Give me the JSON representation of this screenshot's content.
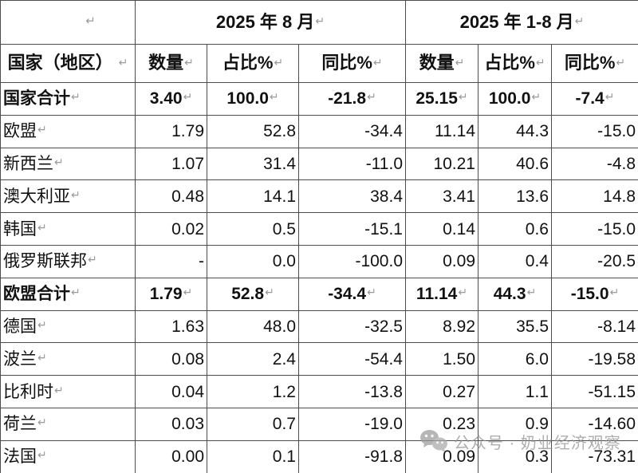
{
  "table": {
    "return_mark": "↵",
    "corner_mark": "↵",
    "period_headers": [
      "2025 年 8 月",
      "2025 年 1-8 月"
    ],
    "col_headers": [
      "国家（地区）",
      "数量",
      "占比%",
      "同比%",
      "数量",
      "占比%",
      "同比%"
    ],
    "rows": [
      {
        "name": "国家合计",
        "bold": true,
        "values": [
          "3.40",
          "100.0",
          "-21.8",
          "25.15",
          "100.0",
          "-7.4"
        ]
      },
      {
        "name": "欧盟",
        "bold": false,
        "values": [
          "1.79",
          "52.8",
          "-34.4",
          "11.14",
          "44.3",
          "-15.0"
        ]
      },
      {
        "name": "新西兰",
        "bold": false,
        "values": [
          "1.07",
          "31.4",
          "-11.0",
          "10.21",
          "40.6",
          "-4.8"
        ]
      },
      {
        "name": "澳大利亚",
        "bold": false,
        "values": [
          "0.48",
          "14.1",
          "38.4",
          "3.41",
          "13.6",
          "14.8"
        ]
      },
      {
        "name": "韩国",
        "bold": false,
        "values": [
          "0.02",
          "0.5",
          "-15.1",
          "0.14",
          "0.6",
          "-15.0"
        ]
      },
      {
        "name": "俄罗斯联邦",
        "bold": false,
        "values": [
          "-",
          "0.0",
          "-100.0",
          "0.09",
          "0.4",
          "-20.5"
        ]
      },
      {
        "name": "欧盟合计",
        "bold": true,
        "values": [
          "1.79",
          "52.8",
          "-34.4",
          "11.14",
          "44.3",
          "-15.0"
        ]
      },
      {
        "name": "德国",
        "bold": false,
        "values": [
          "1.63",
          "48.0",
          "-32.5",
          "8.92",
          "35.5",
          "-8.14"
        ]
      },
      {
        "name": "波兰",
        "bold": false,
        "values": [
          "0.08",
          "2.4",
          "-54.4",
          "1.50",
          "6.0",
          "-19.58"
        ]
      },
      {
        "name": "比利时",
        "bold": false,
        "values": [
          "0.04",
          "1.2",
          "-13.8",
          "0.27",
          "1.1",
          "-51.15"
        ]
      },
      {
        "name": "荷兰",
        "bold": false,
        "values": [
          "0.03",
          "0.7",
          "-19.0",
          "0.23",
          "0.9",
          "-14.60"
        ]
      },
      {
        "name": "法国",
        "bold": false,
        "values": [
          "0.00",
          "0.1",
          "-91.8",
          "0.09",
          "0.3",
          "-73.31"
        ]
      }
    ]
  },
  "watermark": {
    "text": "公众号 · 奶业经济观察",
    "icon": "wechat-icon"
  },
  "colors": {
    "border": "#4c4c4c",
    "text": "#111111",
    "return_mark": "#9a9a9a",
    "watermark": "#909090",
    "background": "#ffffff"
  }
}
